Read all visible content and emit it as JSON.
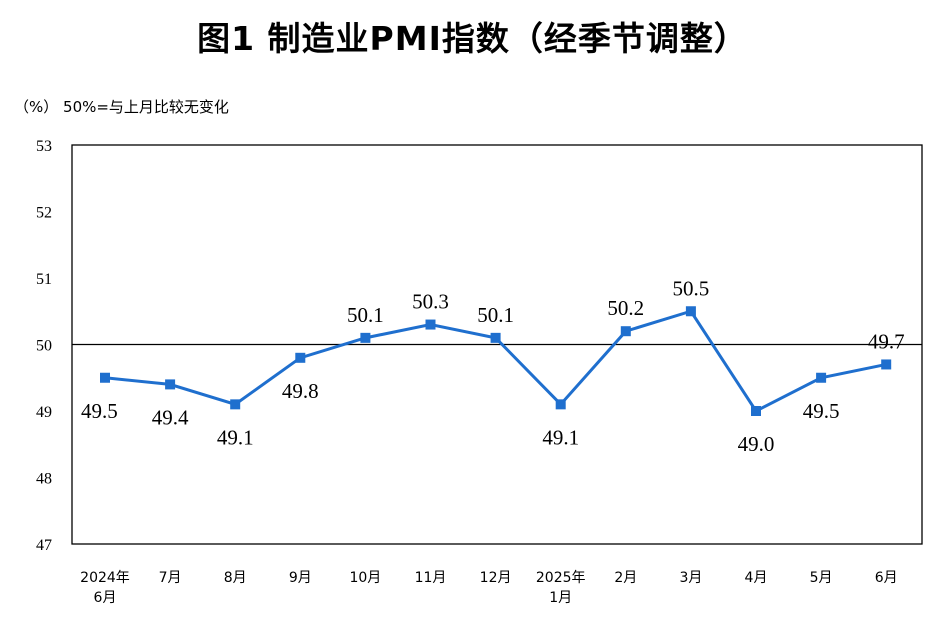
{
  "title": "图1  制造业PMI指数（经季节调整）",
  "unit_note": "（%） 50%=与上月比较无变化",
  "chart_data": {
    "type": "line",
    "title": "图1  制造业PMI指数（经季节调整）",
    "ylabel": "（%）",
    "annotation": "50%=与上月比较无变化",
    "ylim": [
      47,
      53
    ],
    "yticks": [
      47,
      48,
      49,
      50,
      51,
      52,
      53
    ],
    "reference_line": 50,
    "categories": [
      [
        "2024年",
        "6月"
      ],
      [
        "7月"
      ],
      [
        "8月"
      ],
      [
        "9月"
      ],
      [
        "10月"
      ],
      [
        "11月"
      ],
      [
        "12月"
      ],
      [
        "2025年",
        "1月"
      ],
      [
        "2月"
      ],
      [
        "3月"
      ],
      [
        "4月"
      ],
      [
        "5月"
      ],
      [
        "6月"
      ]
    ],
    "series": [
      {
        "name": "制造业PMI",
        "color": "#1f6fce",
        "values": [
          49.5,
          49.4,
          49.1,
          49.8,
          50.1,
          50.3,
          50.1,
          49.1,
          50.2,
          50.5,
          49.0,
          49.5,
          49.7
        ],
        "labels": [
          "49.5",
          "49.4",
          "49.1",
          "49.8",
          "50.1",
          "50.3",
          "50.1",
          "49.1",
          "50.2",
          "50.5",
          "49.0",
          "49.5",
          "49.7"
        ]
      }
    ]
  }
}
